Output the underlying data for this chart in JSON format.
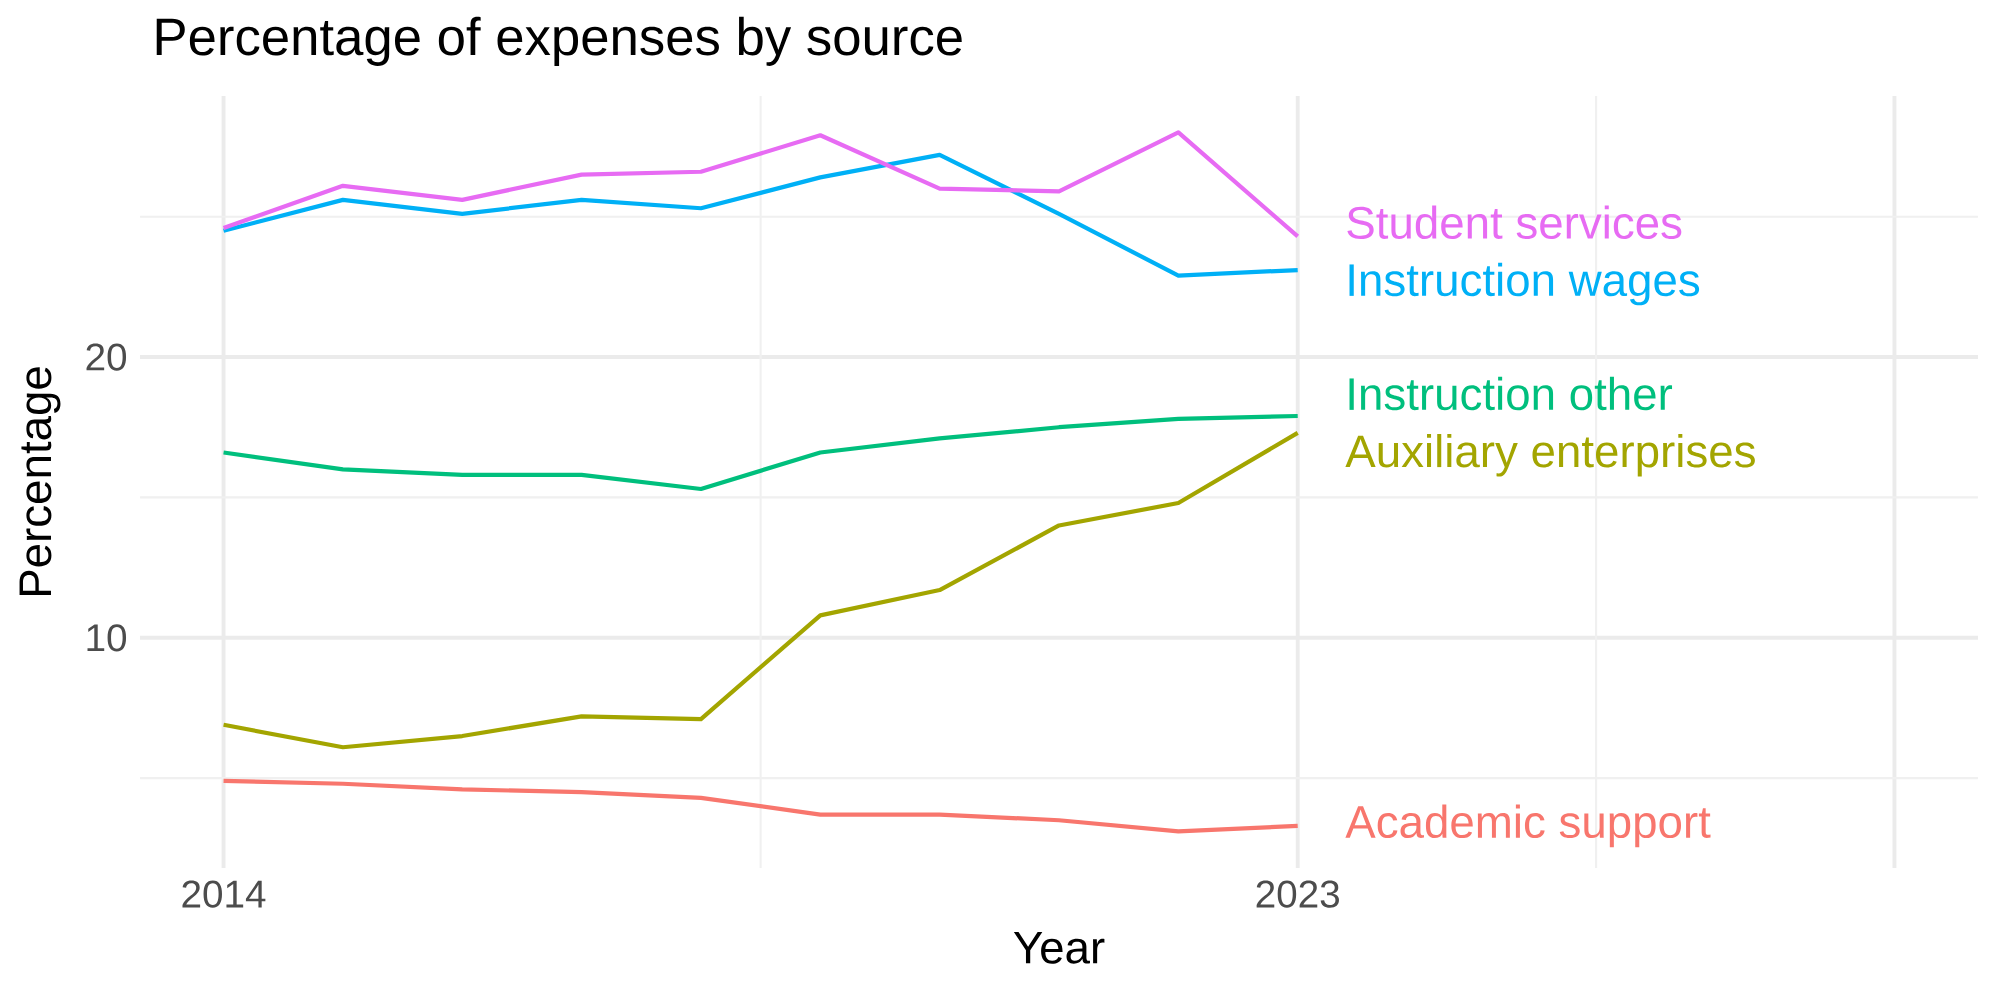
{
  "chart_data": {
    "type": "line",
    "title": "Percentage of expenses by source",
    "xlabel": "Year",
    "ylabel": "Percentage",
    "x": [
      2014,
      2015,
      2016,
      2017,
      2018,
      2019,
      2020,
      2021,
      2022,
      2023
    ],
    "xlim": [
      2013.3,
      2028.7
    ],
    "xticks": [
      2014,
      2023,
      {
        "value": 2028,
        "label": null
      }
    ],
    "ylim": [
      1.8,
      29.3
    ],
    "yticks": [
      {
        "value": 5,
        "label": null
      },
      10,
      {
        "value": 15,
        "label": null
      },
      20,
      {
        "value": 25,
        "label": null
      }
    ],
    "grid": true,
    "series": [
      {
        "name": "Academic support",
        "color": "#f8766d",
        "values": [
          4.9,
          4.8,
          4.6,
          4.5,
          4.3,
          3.7,
          3.7,
          3.5,
          3.1,
          3.3
        ]
      },
      {
        "name": "Auxiliary enterprises",
        "color": "#a3a500",
        "values": [
          6.9,
          6.1,
          6.5,
          7.2,
          7.1,
          10.8,
          11.7,
          14.0,
          14.8,
          17.3
        ]
      },
      {
        "name": "Instruction other",
        "color": "#00bf7d",
        "values": [
          16.6,
          16.0,
          15.8,
          15.8,
          15.3,
          16.6,
          17.1,
          17.5,
          17.8,
          17.9
        ]
      },
      {
        "name": "Instruction wages",
        "color": "#00b0f6",
        "values": [
          24.5,
          25.6,
          25.1,
          25.6,
          25.3,
          26.4,
          27.2,
          25.1,
          22.9,
          23.1
        ]
      },
      {
        "name": "Student services",
        "color": "#e76bf3",
        "values": [
          24.6,
          26.1,
          25.6,
          26.5,
          26.6,
          27.9,
          26.0,
          25.9,
          28.0,
          24.3
        ]
      }
    ]
  }
}
